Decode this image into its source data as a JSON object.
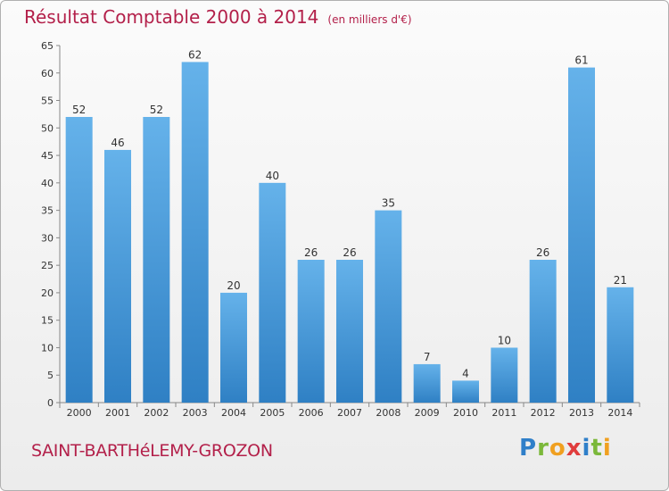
{
  "title": "Résultat Comptable 2000 à 2014",
  "unit": "(en milliers d'€)",
  "commune": "SAINT-BARTHéLEMY-GROZON",
  "logo": {
    "letters": [
      "P",
      "r",
      "o",
      "x",
      "i",
      "t",
      "i"
    ],
    "colors": [
      "#2f7fc9",
      "#7bb83a",
      "#f0a020",
      "#e03c3c",
      "#2f7fc9",
      "#7bb83a",
      "#f0a020"
    ]
  },
  "colors": {
    "title": "#b3204a",
    "bar_light": "#65b2ea",
    "bar_dark": "#2f80c4"
  },
  "chart_data": {
    "type": "bar",
    "title": "Résultat Comptable 2000 à 2014",
    "subtitle": "(en milliers d'€)",
    "categories": [
      "2000",
      "2001",
      "2002",
      "2003",
      "2004",
      "2005",
      "2006",
      "2007",
      "2008",
      "2009",
      "2010",
      "2011",
      "2012",
      "2013",
      "2014"
    ],
    "values": [
      52,
      46,
      52,
      62,
      20,
      40,
      26,
      26,
      35,
      7,
      4,
      10,
      26,
      61,
      21
    ],
    "ylim": [
      0,
      65
    ],
    "yticks": [
      0,
      5,
      10,
      15,
      20,
      25,
      30,
      35,
      40,
      45,
      50,
      55,
      60,
      65
    ],
    "grid": false,
    "data_labels": true
  }
}
